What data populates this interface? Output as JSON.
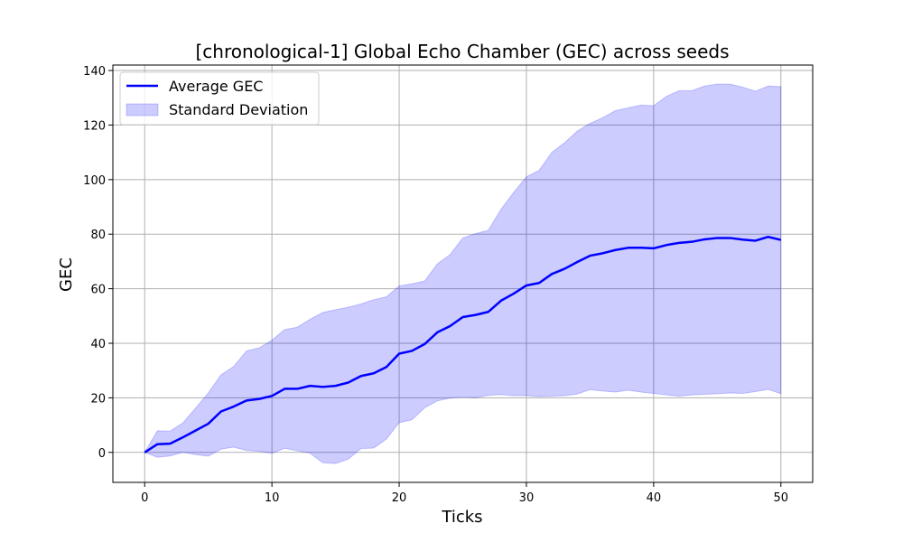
{
  "chart_data": {
    "type": "line",
    "title": "[chronological-1] Global Echo Chamber (GEC) across seeds",
    "xlabel": "Ticks",
    "ylabel": "GEC",
    "xlim": [
      -2.5,
      52.5
    ],
    "ylim": [
      -11,
      142
    ],
    "xticks": [
      0,
      10,
      20,
      30,
      40,
      50
    ],
    "yticks": [
      0,
      20,
      40,
      60,
      80,
      100,
      120,
      140
    ],
    "grid": true,
    "legend_position": "top-left",
    "x": [
      0,
      1,
      2,
      3,
      4,
      5,
      6,
      7,
      8,
      9,
      10,
      11,
      12,
      13,
      14,
      15,
      16,
      17,
      18,
      19,
      20,
      21,
      22,
      23,
      24,
      25,
      26,
      27,
      28,
      29,
      30,
      31,
      32,
      33,
      34,
      35,
      36,
      37,
      38,
      39,
      40,
      41,
      42,
      43,
      44,
      45,
      46,
      47,
      48,
      49,
      50
    ],
    "series": [
      {
        "name": "Average GEC",
        "color": "#0000ff",
        "values": [
          0,
          3,
          3.2,
          5.5,
          8,
          10.5,
          15,
          16.8,
          19,
          19.6,
          20.7,
          23.3,
          23.3,
          24.4,
          24,
          24.4,
          25.6,
          28,
          29,
          31.3,
          36.2,
          37.2,
          39.7,
          44,
          46.3,
          49.6,
          50.4,
          51.5,
          55.6,
          58.2,
          61.2,
          62.1,
          65.4,
          67.3,
          69.8,
          72.1,
          73,
          74.2,
          75,
          75,
          74.8,
          76,
          76.8,
          77.2,
          78.1,
          78.6,
          78.6,
          78,
          77.6,
          79,
          77.9
        ]
      },
      {
        "name": "Standard Deviation",
        "color": "#0000ff",
        "fill_opacity": 0.2,
        "upper": [
          0,
          7.9,
          7.8,
          10.8,
          16.2,
          21.8,
          28.4,
          31.5,
          37.2,
          38.3,
          41.1,
          45,
          45.9,
          48.8,
          51.3,
          52.3,
          53.2,
          54.4,
          56,
          57,
          61,
          61.8,
          62.8,
          69.1,
          72.5,
          78.6,
          80.2,
          81.4,
          89.1,
          95.3,
          101,
          103.4,
          110,
          113.5,
          117.8,
          120.6,
          122.7,
          125.3,
          126.3,
          127.3,
          127.1,
          130.5,
          132.6,
          132.6,
          134.3,
          135,
          135,
          133.9,
          132.4,
          134.3,
          134.1
        ],
        "lower": [
          0,
          -1.8,
          -1.3,
          0,
          -0.8,
          -1.4,
          1.2,
          1.9,
          0.7,
          0.4,
          -0.3,
          1.5,
          0.6,
          -0.3,
          -3.8,
          -4.1,
          -2.5,
          1.4,
          1.6,
          4.9,
          10.9,
          11.9,
          16.3,
          18.9,
          19.9,
          20.3,
          20,
          20.9,
          21.2,
          20.8,
          20.8,
          20.4,
          20.6,
          20.8,
          21.4,
          23,
          22.5,
          22.1,
          22.8,
          22.1,
          21.6,
          21.1,
          20.6,
          21.1,
          21.3,
          21.5,
          21.8,
          21.6,
          22.3,
          23.1,
          21.5
        ]
      }
    ]
  }
}
